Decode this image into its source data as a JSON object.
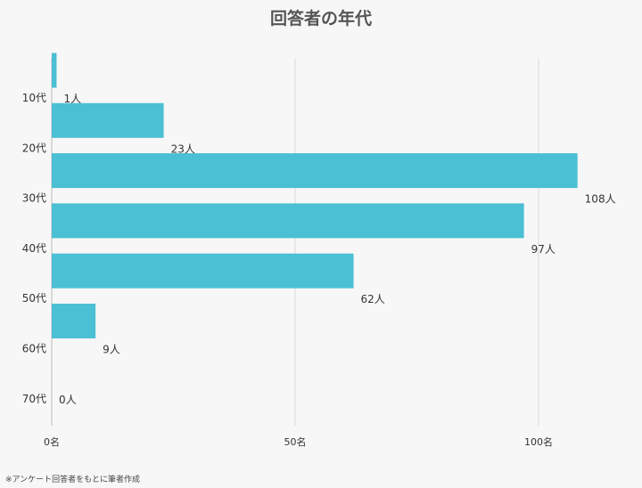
{
  "chart_data": {
    "type": "bar",
    "orientation": "horizontal",
    "title": "回答者の年代",
    "categories": [
      "10代",
      "20代",
      "30代",
      "40代",
      "50代",
      "60代",
      "70代"
    ],
    "values": [
      1,
      23,
      108,
      97,
      62,
      9,
      0
    ],
    "data_labels": [
      "1人",
      "23人",
      "108人",
      "97人",
      "62人",
      "9人",
      "0人"
    ],
    "x_ticks": [
      0,
      50,
      100
    ],
    "x_tick_labels": [
      "0名",
      "50名",
      "100名"
    ],
    "xlim": [
      0,
      110
    ],
    "grid": true,
    "bar_color": "#4bbfd3"
  },
  "footnote": "※アンケート回答者をもとに筆者作成"
}
